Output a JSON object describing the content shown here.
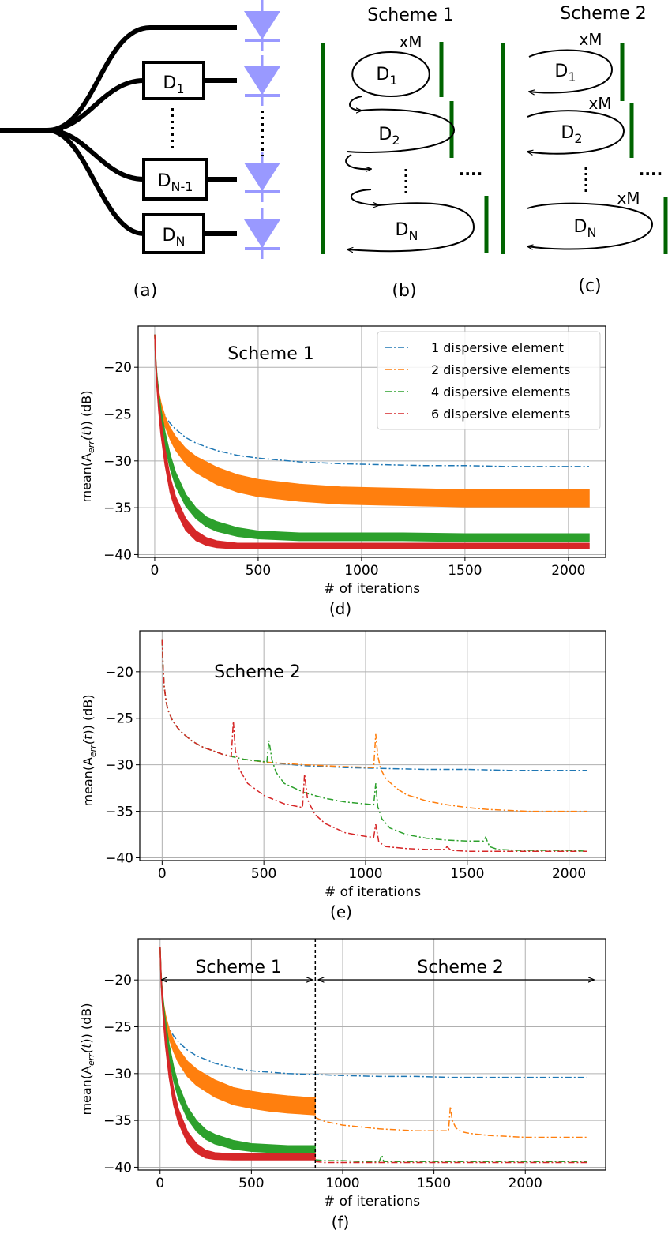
{
  "schematic": {
    "scheme1_title": "Scheme 1",
    "scheme2_title": "Scheme 2",
    "xM": "xM",
    "dots": "....",
    "D1_base": "D",
    "D1_sub": "1",
    "D2_base": "D",
    "D2_sub": "2",
    "DNm1_base": "D",
    "DNm1_sub": "N-1",
    "DN_base": "D",
    "DN_sub": "N",
    "panel_a": "(a)",
    "panel_b": "(b)",
    "panel_c": "(c)"
  },
  "colors": {
    "blue": "#1f77b4",
    "orange": "#ff7f0e",
    "green": "#2ca02c",
    "red": "#d62728",
    "diode": "#9999ff",
    "mirror": "#006400",
    "grid": "#b0b0b0"
  },
  "chart_data": [
    {
      "type": "line",
      "panel_label": "(d)",
      "annotation": "Scheme 1",
      "xlabel": "# of iterations",
      "ylabel_prefix": "mean(A",
      "ylabel_sub": "err",
      "ylabel_suffix": "(t)) (dB)",
      "ylabel_t": "t",
      "xlim": [
        -80,
        2180
      ],
      "ylim": [
        -40.3,
        -15.6
      ],
      "xticks": [
        0,
        500,
        1000,
        1500,
        2000
      ],
      "xtick_labels": [
        "0",
        "500",
        "1000",
        "1500",
        "2000"
      ],
      "yticks": [
        -20,
        -25,
        -30,
        -35,
        -40
      ],
      "ytick_labels": [
        "−20",
        "−25",
        "−30",
        "−35",
        "−40"
      ],
      "legend_position": "top-right",
      "legend": [
        "1 dispersive element",
        "2 dispersive elements",
        "4 dispersive elements",
        "6 dispersive elements"
      ],
      "grid": true,
      "series": [
        {
          "name": "1 dispersive element",
          "color": "blue",
          "style": "dashdot",
          "x": [
            0,
            5,
            10,
            20,
            30,
            50,
            75,
            100,
            150,
            200,
            300,
            400,
            500,
            700,
            900,
            1100,
            1300,
            1500,
            1700,
            1900,
            2100
          ],
          "y": [
            -16.5,
            -19.5,
            -21.5,
            -23.3,
            -24.2,
            -25.2,
            -26.0,
            -26.6,
            -27.5,
            -28.1,
            -28.9,
            -29.4,
            -29.7,
            -30.1,
            -30.3,
            -30.4,
            -30.5,
            -30.5,
            -30.6,
            -30.6,
            -30.6
          ]
        },
        {
          "name": "2 dispersive elements",
          "color": "orange",
          "style": "band",
          "x": [
            0,
            5,
            10,
            20,
            30,
            50,
            75,
            100,
            150,
            200,
            300,
            400,
            500,
            700,
            900,
            1100,
            1300,
            1500,
            1700,
            1900,
            2100
          ],
          "y": [
            -16.5,
            -19.5,
            -21.3,
            -23.0,
            -24.2,
            -25.8,
            -27.1,
            -28.1,
            -29.5,
            -30.4,
            -31.6,
            -32.4,
            -32.9,
            -33.4,
            -33.7,
            -33.8,
            -33.9,
            -34.0,
            -34.0,
            -34.0,
            -34.0
          ],
          "band": [
            0.0,
            0.0,
            0.2,
            0.3,
            0.4,
            0.5,
            0.6,
            0.7,
            0.8,
            0.85,
            0.9,
            0.9,
            0.9,
            0.9,
            0.9,
            0.9,
            0.9,
            0.9,
            0.9,
            0.9,
            0.9
          ]
        },
        {
          "name": "4 dispersive elements",
          "color": "green",
          "style": "band",
          "x": [
            0,
            5,
            10,
            20,
            30,
            50,
            75,
            100,
            150,
            200,
            250,
            300,
            400,
            500,
            700,
            900,
            1200,
            1500,
            1800,
            2100
          ],
          "y": [
            -16.5,
            -19.3,
            -21.0,
            -23.3,
            -25.1,
            -27.7,
            -30.1,
            -31.9,
            -34.2,
            -35.6,
            -36.5,
            -37.0,
            -37.6,
            -37.9,
            -38.1,
            -38.1,
            -38.1,
            -38.2,
            -38.2,
            -38.2
          ],
          "band": [
            0.0,
            0.2,
            0.3,
            0.5,
            0.6,
            0.7,
            0.7,
            0.7,
            0.6,
            0.55,
            0.5,
            0.5,
            0.45,
            0.4,
            0.4,
            0.4,
            0.4,
            0.4,
            0.4,
            0.4
          ]
        },
        {
          "name": "6 dispersive elements",
          "color": "red",
          "style": "band",
          "x": [
            0,
            5,
            10,
            20,
            30,
            50,
            75,
            100,
            150,
            200,
            250,
            300,
            400,
            500,
            700,
            900,
            1200,
            1500,
            1800,
            2100
          ],
          "y": [
            -16.5,
            -19.5,
            -21.5,
            -24.2,
            -26.4,
            -29.6,
            -32.6,
            -34.5,
            -36.8,
            -38.0,
            -38.6,
            -38.9,
            -39.1,
            -39.1,
            -39.1,
            -39.1,
            -39.1,
            -39.1,
            -39.1,
            -39.1
          ],
          "band": [
            0.0,
            0.3,
            0.4,
            0.6,
            0.7,
            0.8,
            0.8,
            0.7,
            0.6,
            0.5,
            0.4,
            0.35,
            0.3,
            0.3,
            0.3,
            0.3,
            0.3,
            0.3,
            0.3,
            0.3
          ]
        }
      ]
    },
    {
      "type": "line",
      "panel_label": "(e)",
      "annotation": "Scheme 2",
      "xlabel": "# of iterations",
      "ylabel_prefix": "mean(A",
      "ylabel_sub": "err",
      "ylabel_suffix": "(t)) (dB)",
      "ylabel_t": "t",
      "xlim": [
        -110,
        2180
      ],
      "ylim": [
        -40.3,
        -15.6
      ],
      "xticks": [
        0,
        500,
        1000,
        1500,
        2000
      ],
      "xtick_labels": [
        "0",
        "500",
        "1000",
        "1500",
        "2000"
      ],
      "yticks": [
        -20,
        -25,
        -30,
        -35,
        -40
      ],
      "ytick_labels": [
        "−20",
        "−25",
        "−30",
        "−35",
        "−40"
      ],
      "grid": true,
      "series": [
        {
          "name": "1 dispersive element",
          "color": "blue",
          "style": "dashdot",
          "x": [
            0,
            5,
            10,
            20,
            30,
            50,
            75,
            100,
            150,
            200,
            300,
            400,
            500,
            700,
            900,
            1100,
            1300,
            1500,
            1700,
            1900,
            2090
          ],
          "y": [
            -16.5,
            -19.5,
            -21.5,
            -23.3,
            -24.2,
            -25.2,
            -26.0,
            -26.6,
            -27.5,
            -28.1,
            -28.9,
            -29.4,
            -29.7,
            -30.1,
            -30.3,
            -30.4,
            -30.5,
            -30.5,
            -30.6,
            -30.6,
            -30.6
          ]
        },
        {
          "name": "2 dispersive elements",
          "color": "orange",
          "style": "dashdot",
          "x": [
            0,
            5,
            10,
            20,
            30,
            50,
            75,
            100,
            150,
            200,
            300,
            400,
            500,
            700,
            900,
            1040,
            1050,
            1060,
            1075,
            1100,
            1150,
            1200,
            1300,
            1400,
            1500,
            1600,
            1700,
            1800,
            1900,
            2000,
            2090
          ],
          "y": [
            -16.5,
            -19.5,
            -21.5,
            -23.3,
            -24.2,
            -25.2,
            -26.0,
            -26.6,
            -27.5,
            -28.1,
            -28.9,
            -29.4,
            -29.7,
            -30.0,
            -30.2,
            -30.3,
            -26.7,
            -29.0,
            -30.5,
            -31.5,
            -32.5,
            -33.2,
            -33.9,
            -34.3,
            -34.6,
            -34.8,
            -34.9,
            -35.0,
            -35.0,
            -35.0,
            -35.0
          ]
        },
        {
          "name": "4 dispersive elements",
          "color": "green",
          "style": "dashdot",
          "x": [
            0,
            5,
            10,
            20,
            30,
            50,
            75,
            100,
            150,
            200,
            300,
            400,
            515,
            525,
            540,
            560,
            600,
            700,
            800,
            900,
            1040,
            1050,
            1060,
            1080,
            1120,
            1200,
            1300,
            1400,
            1500,
            1580,
            1590,
            1610,
            1650,
            1750,
            1850,
            2000,
            2090
          ],
          "y": [
            -16.5,
            -19.5,
            -21.5,
            -23.3,
            -24.2,
            -25.2,
            -26.0,
            -26.6,
            -27.5,
            -28.1,
            -28.9,
            -29.4,
            -29.7,
            -27.4,
            -29.5,
            -30.8,
            -32.0,
            -33.0,
            -33.6,
            -34.0,
            -34.3,
            -32.0,
            -34.5,
            -35.8,
            -36.8,
            -37.5,
            -37.9,
            -38.1,
            -38.2,
            -38.2,
            -37.8,
            -38.8,
            -39.1,
            -39.2,
            -39.2,
            -39.2,
            -39.3
          ]
        },
        {
          "name": "6 dispersive elements",
          "color": "red",
          "style": "dashdot",
          "x": [
            0,
            5,
            10,
            20,
            30,
            50,
            75,
            100,
            150,
            200,
            300,
            340,
            350,
            360,
            380,
            420,
            500,
            600,
            690,
            700,
            715,
            750,
            800,
            900,
            1000,
            1040,
            1050,
            1065,
            1100,
            1200,
            1300,
            1390,
            1400,
            1420,
            1500,
            1600,
            1700,
            1800,
            1900,
            2090
          ],
          "y": [
            -16.5,
            -19.5,
            -21.5,
            -23.3,
            -24.2,
            -25.2,
            -26.0,
            -26.6,
            -27.5,
            -28.1,
            -28.9,
            -29.1,
            -25.3,
            -28.5,
            -30.5,
            -32.0,
            -33.3,
            -34.2,
            -34.6,
            -31.0,
            -33.8,
            -35.3,
            -36.3,
            -37.3,
            -37.7,
            -37.8,
            -36.4,
            -38.3,
            -38.8,
            -39.0,
            -39.1,
            -39.1,
            -38.8,
            -39.2,
            -39.3,
            -39.3,
            -39.3,
            -39.3,
            -39.3,
            -39.3
          ]
        }
      ]
    },
    {
      "type": "line",
      "panel_label": "(f)",
      "annotation_left": "Scheme 1",
      "annotation_right": "Scheme 2",
      "divider_x": 850,
      "xlabel": "# of iterations",
      "ylabel_prefix": "mean(A",
      "ylabel_sub": "err",
      "ylabel_suffix": "(t)) (dB)",
      "ylabel_t": "t",
      "xlim": [
        -120,
        2440
      ],
      "ylim": [
        -40.3,
        -15.6
      ],
      "xticks": [
        0,
        500,
        1000,
        1500,
        2000
      ],
      "xtick_labels": [
        "0",
        "500",
        "1000",
        "1500",
        "2000"
      ],
      "yticks": [
        -20,
        -25,
        -30,
        -35,
        -40
      ],
      "ytick_labels": [
        "−20",
        "−25",
        "−30",
        "−35",
        "−40"
      ],
      "grid": true,
      "series": [
        {
          "name": "1 dispersive element",
          "color": "blue",
          "style": "dashdot",
          "x": [
            0,
            5,
            10,
            20,
            30,
            50,
            75,
            100,
            150,
            200,
            300,
            400,
            500,
            700,
            850,
            1000,
            1200,
            1400,
            1600,
            1800,
            2000,
            2200,
            2340
          ],
          "y": [
            -16.5,
            -19.5,
            -21.5,
            -23.3,
            -24.2,
            -25.2,
            -26.0,
            -26.6,
            -27.5,
            -28.1,
            -28.9,
            -29.4,
            -29.7,
            -30.0,
            -30.1,
            -30.2,
            -30.3,
            -30.3,
            -30.4,
            -30.4,
            -30.4,
            -30.4,
            -30.4
          ]
        },
        {
          "name": "2 dispersive elements",
          "color": "orange",
          "style": "band",
          "x": [
            0,
            5,
            10,
            20,
            30,
            50,
            75,
            100,
            150,
            200,
            300,
            400,
            500,
            600,
            700,
            849
          ],
          "y": [
            -16.5,
            -19.5,
            -21.3,
            -23.0,
            -24.2,
            -25.8,
            -27.1,
            -28.1,
            -29.5,
            -30.4,
            -31.6,
            -32.4,
            -32.8,
            -33.1,
            -33.3,
            -33.5
          ],
          "band": [
            0.0,
            0.0,
            0.2,
            0.3,
            0.4,
            0.5,
            0.6,
            0.7,
            0.8,
            0.85,
            0.9,
            0.9,
            0.9,
            0.9,
            0.9,
            0.9
          ]
        },
        {
          "name": "2 dispersive elements",
          "color": "orange",
          "style": "dashdot",
          "x": [
            851,
            900,
            1000,
            1100,
            1200,
            1300,
            1400,
            1500,
            1580,
            1590,
            1600,
            1620,
            1650,
            1700,
            1800,
            1900,
            2000,
            2100,
            2200,
            2340
          ],
          "y": [
            -34.7,
            -35.1,
            -35.5,
            -35.7,
            -35.9,
            -36.0,
            -36.1,
            -36.1,
            -36.1,
            -33.5,
            -35.0,
            -35.8,
            -36.2,
            -36.4,
            -36.6,
            -36.7,
            -36.8,
            -36.8,
            -36.8,
            -36.8
          ]
        },
        {
          "name": "4 dispersive elements",
          "color": "green",
          "style": "band",
          "x": [
            0,
            5,
            10,
            20,
            30,
            50,
            75,
            100,
            150,
            200,
            250,
            300,
            400,
            500,
            700,
            849
          ],
          "y": [
            -16.5,
            -19.3,
            -21.0,
            -23.3,
            -25.1,
            -27.7,
            -30.1,
            -31.9,
            -34.2,
            -35.6,
            -36.5,
            -37.0,
            -37.6,
            -37.9,
            -38.1,
            -38.1
          ],
          "band": [
            0.0,
            0.2,
            0.3,
            0.5,
            0.6,
            0.7,
            0.7,
            0.7,
            0.6,
            0.55,
            0.5,
            0.5,
            0.45,
            0.4,
            0.4,
            0.4
          ]
        },
        {
          "name": "4 dispersive elements",
          "color": "green",
          "style": "dashdot",
          "x": [
            851,
            900,
            1000,
            1100,
            1200,
            1215,
            1225,
            1300,
            1500,
            1700,
            1900,
            2100,
            2340
          ],
          "y": [
            -39.2,
            -39.3,
            -39.3,
            -39.4,
            -39.4,
            -38.7,
            -39.4,
            -39.4,
            -39.4,
            -39.4,
            -39.4,
            -39.4,
            -39.4
          ]
        },
        {
          "name": "6 dispersive elements",
          "color": "red",
          "style": "band",
          "x": [
            0,
            5,
            10,
            20,
            30,
            50,
            75,
            100,
            150,
            200,
            250,
            300,
            400,
            500,
            700,
            849
          ],
          "y": [
            -16.5,
            -19.5,
            -21.5,
            -24.2,
            -26.4,
            -29.6,
            -32.6,
            -34.5,
            -36.8,
            -38.0,
            -38.6,
            -38.8,
            -38.9,
            -38.9,
            -38.9,
            -38.9
          ],
          "band": [
            0.0,
            0.3,
            0.4,
            0.6,
            0.7,
            0.8,
            0.8,
            0.7,
            0.6,
            0.5,
            0.4,
            0.35,
            0.3,
            0.3,
            0.3,
            0.3
          ]
        },
        {
          "name": "6 dispersive elements",
          "color": "red",
          "style": "dashdot",
          "x": [
            851,
            900,
            1000,
            1100,
            1200,
            1400,
            1600,
            1800,
            2000,
            2200,
            2340
          ],
          "y": [
            -39.4,
            -39.5,
            -39.5,
            -39.5,
            -39.5,
            -39.5,
            -39.5,
            -39.5,
            -39.5,
            -39.5,
            -39.5
          ]
        }
      ]
    }
  ]
}
